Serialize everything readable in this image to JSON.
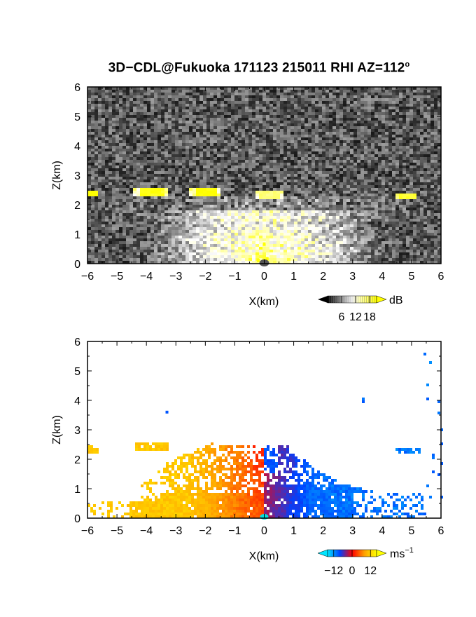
{
  "title": {
    "main": "3D−CDL@Fukuoka 171123 215011 RHI AZ=112",
    "degree": "o"
  },
  "chart_data": [
    {
      "type": "heatmap",
      "title": "3D−CDL@Fukuoka 171123 215011 RHI AZ=112°",
      "quantity": "backscatter intensity",
      "xlabel": "X(km)",
      "ylabel": "Z(km)",
      "xlim": [
        -6,
        6
      ],
      "ylim": [
        0,
        6
      ],
      "xticks": [
        "−6",
        "−5",
        "−4",
        "−3",
        "−2",
        "−1",
        "0",
        "1",
        "2",
        "3",
        "4",
        "5",
        "6"
      ],
      "yticks": [
        "0",
        "1",
        "2",
        "3",
        "4",
        "5",
        "6"
      ],
      "colorbar": {
        "unit": "dB",
        "ticks": [
          "6",
          "12",
          "18"
        ],
        "range": [
          0,
          21
        ],
        "colors": [
          "#000000",
          "#ffffff",
          "#ffff00"
        ]
      },
      "cloud_layers": [
        {
          "x": [
            -6.0,
            -5.6
          ],
          "z": [
            2.25,
            2.5
          ],
          "value": 20
        },
        {
          "x": [
            -4.4,
            -3.3
          ],
          "z": [
            2.3,
            2.55
          ],
          "value": 19
        },
        {
          "x": [
            -2.5,
            -1.5
          ],
          "z": [
            2.25,
            2.6
          ],
          "value": 20
        },
        {
          "x": [
            -0.3,
            0.6
          ],
          "z": [
            2.2,
            2.45
          ],
          "value": 15
        },
        {
          "x": [
            4.5,
            5.2
          ],
          "z": [
            2.15,
            2.35
          ],
          "value": 18
        }
      ],
      "near_field": {
        "x": [
          -4,
          4
        ],
        "z": [
          0,
          1.5
        ],
        "value": 12
      }
    },
    {
      "type": "heatmap",
      "quantity": "radial velocity",
      "xlabel": "X(km)",
      "ylabel": "Z(km)",
      "xlim": [
        -6,
        6
      ],
      "ylim": [
        0,
        6
      ],
      "xticks": [
        "−6",
        "−5",
        "−4",
        "−3",
        "−2",
        "−1",
        "0",
        "1",
        "2",
        "3",
        "4",
        "5",
        "6"
      ],
      "yticks": [
        "0",
        "1",
        "2",
        "3",
        "4",
        "5",
        "6"
      ],
      "colorbar": {
        "unit": "ms",
        "unit_exp": "−1",
        "ticks": [
          "−12",
          "0",
          "12"
        ],
        "range": [
          -16,
          16
        ],
        "colors": [
          "#00e5ff",
          "#0040ff",
          "#ff0000",
          "#ffa000",
          "#ffff00"
        ]
      },
      "regions": [
        {
          "x": [
            -6.0,
            -0.05
          ],
          "z": [
            0,
            2.6
          ],
          "velocity": [
            0,
            12
          ]
        },
        {
          "x": [
            0.05,
            5.5
          ],
          "z": [
            0,
            2.5
          ],
          "velocity": [
            -12,
            0
          ]
        },
        {
          "x": [
            4.5,
            5.3
          ],
          "z": [
            2.15,
            2.4
          ],
          "velocity": -8
        },
        {
          "x": [
            3.3,
            3.4
          ],
          "z": [
            3.9,
            4.2
          ],
          "velocity": -9
        }
      ]
    }
  ]
}
